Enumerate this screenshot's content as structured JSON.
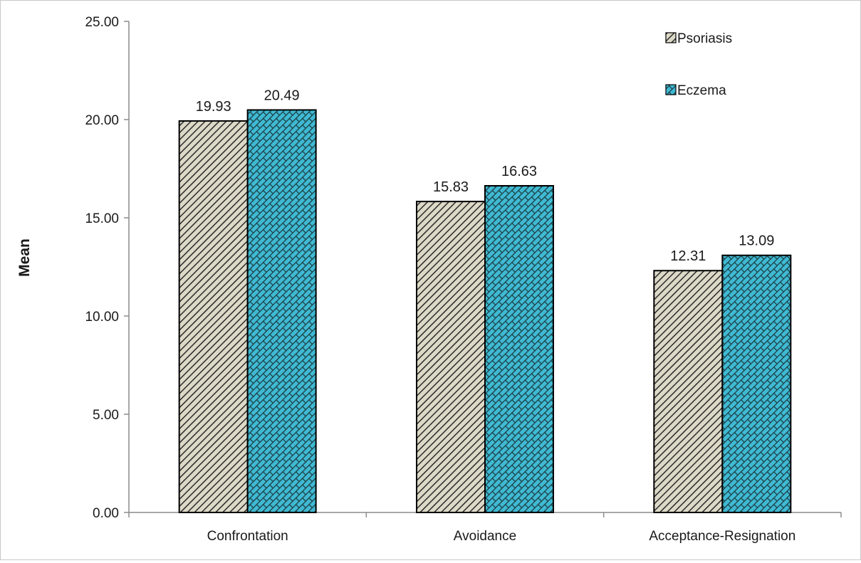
{
  "chart_data": {
    "type": "bar",
    "title": "",
    "xlabel": "",
    "ylabel": "Mean",
    "ylim": [
      0,
      25
    ],
    "yticks": [
      "0.00",
      "5.00",
      "10.00",
      "15.00",
      "20.00",
      "25.00"
    ],
    "ytick_values": [
      0,
      5,
      10,
      15,
      20,
      25
    ],
    "grid": false,
    "legend_position": "top-right",
    "categories": [
      "Confrontation",
      "Avoidance",
      "Acceptance-Resignation"
    ],
    "series": [
      {
        "name": "Psoriasis",
        "values": [
          19.93,
          15.83,
          12.31
        ],
        "labels": [
          "19.93",
          "15.83",
          "12.31"
        ],
        "color": "#d6d2bf",
        "pattern": "diagonal-stripes"
      },
      {
        "name": "Eczema",
        "values": [
          20.49,
          16.63,
          13.09
        ],
        "labels": [
          "20.49",
          "16.63",
          "13.09"
        ],
        "color": "#38b6ce",
        "pattern": "brick"
      }
    ]
  }
}
